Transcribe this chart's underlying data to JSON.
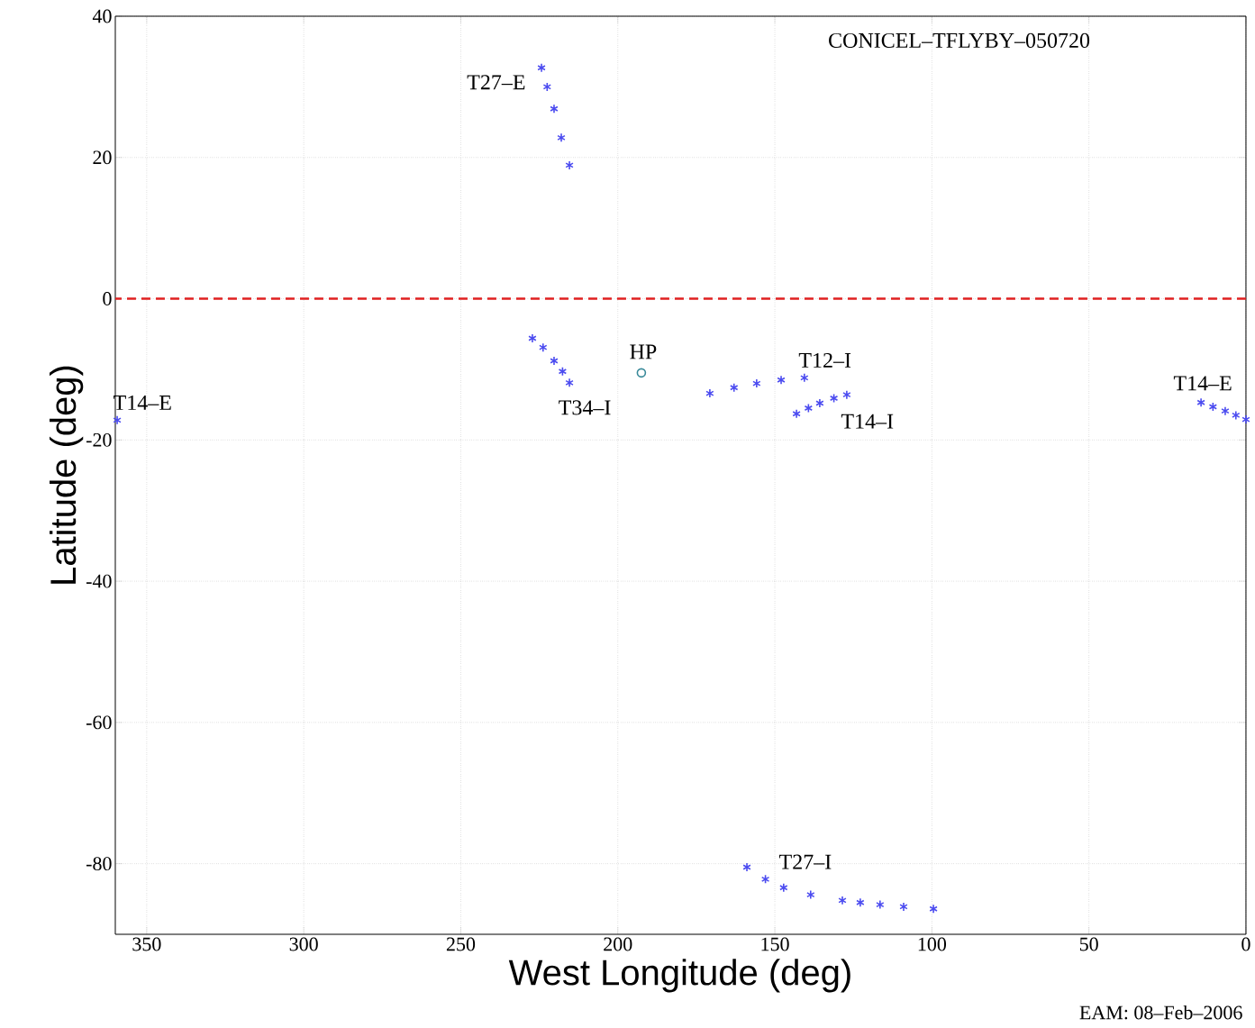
{
  "chart_data": {
    "type": "scatter",
    "xlabel": "West Longitude (deg)",
    "ylabel": "Latitude  (deg)",
    "xlim": [
      360,
      0
    ],
    "ylim": [
      -90,
      40
    ],
    "xticks": [
      350,
      300,
      250,
      200,
      150,
      100,
      50,
      0
    ],
    "yticks": [
      -80,
      -60,
      -40,
      -20,
      0,
      20,
      40
    ],
    "grid": true,
    "marker": "cross",
    "series": [
      {
        "name": "T27–E",
        "color": "#4b4bf0",
        "x": [
          224.3,
          222.5,
          220.3,
          218.0,
          215.4
        ],
        "values": [
          32.7,
          30.0,
          26.9,
          22.8,
          18.9
        ]
      },
      {
        "name": "T34–I",
        "color": "#4b4bf0",
        "x": [
          227.2,
          223.8,
          220.3,
          217.6,
          215.4
        ],
        "values": [
          -5.6,
          -6.9,
          -8.8,
          -10.3,
          -11.9
        ]
      },
      {
        "name": "HP",
        "color": "#3a8a9a",
        "marker": "circle",
        "x": [
          192.5
        ],
        "values": [
          -10.5
        ]
      },
      {
        "name": "T12–I",
        "color": "#4b4bf0",
        "x": [
          170.7,
          163.0,
          155.8,
          148.0,
          140.6
        ],
        "values": [
          -13.4,
          -12.6,
          -12.0,
          -11.5,
          -11.2
        ]
      },
      {
        "name": "T14–I",
        "color": "#4b4bf0",
        "x": [
          143.1,
          139.3,
          135.7,
          131.2,
          127.1
        ],
        "values": [
          -16.3,
          -15.5,
          -14.8,
          -14.1,
          -13.6
        ]
      },
      {
        "name": "T14–E",
        "color": "#4b4bf0",
        "x": [
          14.3,
          10.5,
          6.6,
          3.2,
          0.0
        ],
        "values": [
          -14.7,
          -15.3,
          -15.9,
          -16.5,
          -17.1
        ]
      },
      {
        "name": "T14–E",
        "color": "#4b4bf0",
        "x": [
          359.4
        ],
        "values": [
          -17.2
        ]
      },
      {
        "name": "T27–I",
        "color": "#4b4bf0",
        "x": [
          158.9,
          153.0,
          147.2,
          138.6,
          128.5,
          122.8,
          116.5,
          109.0,
          99.5
        ],
        "values": [
          -80.5,
          -82.2,
          -83.4,
          -84.4,
          -85.2,
          -85.5,
          -85.8,
          -86.1,
          -86.4
        ]
      }
    ],
    "ref_lines": [
      {
        "axis": "y",
        "value": 0,
        "color": "#e02020",
        "line_style": "dashed"
      }
    ],
    "annotations": [
      "CONICEL–TFLYBY–050720",
      "EAM: 08–Feb–2006"
    ]
  }
}
